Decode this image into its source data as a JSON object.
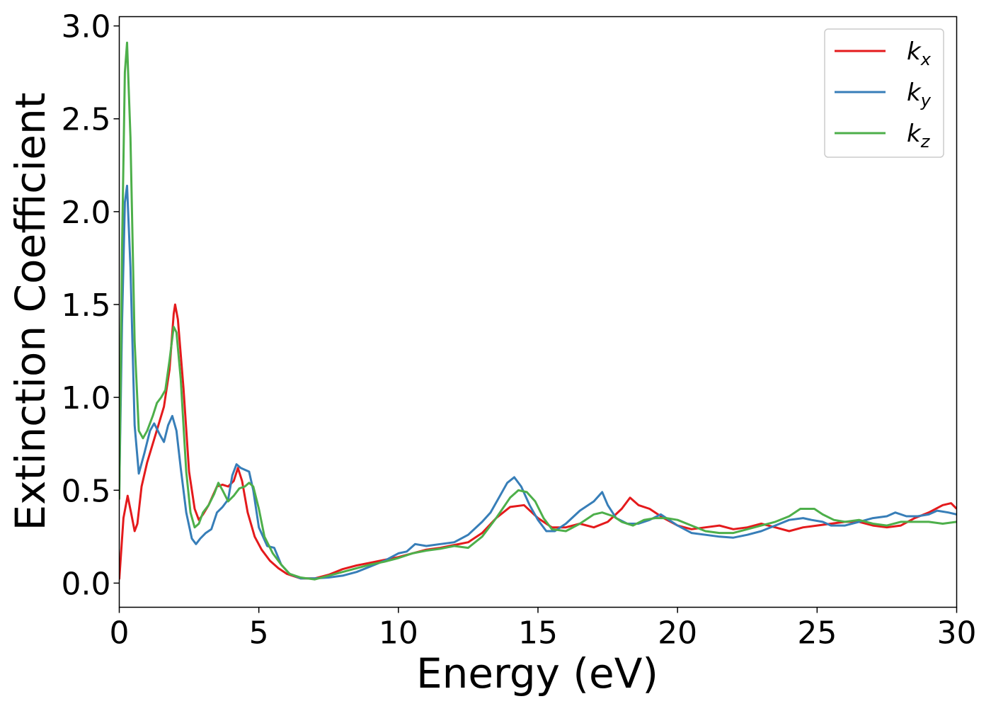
{
  "chart_data": {
    "type": "line",
    "title": "",
    "xlabel": "Energy (eV)",
    "ylabel": "Extinction Coefficient",
    "xlim": [
      0,
      30
    ],
    "ylim": [
      -0.13,
      3.05
    ],
    "xticks": [
      0,
      5,
      10,
      15,
      20,
      25,
      30
    ],
    "xtick_labels": [
      "0",
      "5",
      "10",
      "15",
      "20",
      "25",
      "30"
    ],
    "yticks": [
      0.0,
      0.5,
      1.0,
      1.5,
      2.0,
      2.5,
      3.0
    ],
    "ytick_labels": [
      "0.0",
      "0.5",
      "1.0",
      "1.5",
      "2.0",
      "2.5",
      "3.0"
    ],
    "grid": false,
    "legend_position": "top-right",
    "series": [
      {
        "name": "k",
        "subscript": "x",
        "color": "#e41a1c",
        "points": [
          [
            0,
            0.02
          ],
          [
            0.15,
            0.35
          ],
          [
            0.3,
            0.47
          ],
          [
            0.42,
            0.38
          ],
          [
            0.55,
            0.28
          ],
          [
            0.65,
            0.32
          ],
          [
            0.8,
            0.52
          ],
          [
            1.0,
            0.65
          ],
          [
            1.3,
            0.8
          ],
          [
            1.6,
            0.95
          ],
          [
            1.8,
            1.15
          ],
          [
            1.95,
            1.45
          ],
          [
            2.0,
            1.5
          ],
          [
            2.1,
            1.42
          ],
          [
            2.3,
            1.05
          ],
          [
            2.5,
            0.6
          ],
          [
            2.7,
            0.4
          ],
          [
            2.85,
            0.34
          ],
          [
            3.0,
            0.37
          ],
          [
            3.2,
            0.42
          ],
          [
            3.5,
            0.52
          ],
          [
            3.7,
            0.53
          ],
          [
            3.9,
            0.52
          ],
          [
            4.1,
            0.55
          ],
          [
            4.25,
            0.62
          ],
          [
            4.4,
            0.55
          ],
          [
            4.6,
            0.38
          ],
          [
            4.85,
            0.25
          ],
          [
            5.1,
            0.18
          ],
          [
            5.4,
            0.12
          ],
          [
            5.7,
            0.08
          ],
          [
            6.0,
            0.05
          ],
          [
            6.5,
            0.025
          ],
          [
            7.0,
            0.025
          ],
          [
            7.5,
            0.045
          ],
          [
            8.0,
            0.075
          ],
          [
            8.5,
            0.095
          ],
          [
            9.0,
            0.11
          ],
          [
            9.5,
            0.125
          ],
          [
            10.0,
            0.14
          ],
          [
            10.5,
            0.16
          ],
          [
            11.0,
            0.18
          ],
          [
            11.5,
            0.19
          ],
          [
            12.0,
            0.205
          ],
          [
            12.5,
            0.22
          ],
          [
            13.0,
            0.27
          ],
          [
            13.5,
            0.35
          ],
          [
            14.0,
            0.41
          ],
          [
            14.5,
            0.42
          ],
          [
            15.0,
            0.35
          ],
          [
            15.5,
            0.3
          ],
          [
            16.0,
            0.3
          ],
          [
            16.5,
            0.32
          ],
          [
            17.0,
            0.3
          ],
          [
            17.5,
            0.33
          ],
          [
            18.0,
            0.4
          ],
          [
            18.3,
            0.46
          ],
          [
            18.6,
            0.42
          ],
          [
            19.0,
            0.4
          ],
          [
            19.5,
            0.35
          ],
          [
            20.0,
            0.31
          ],
          [
            20.5,
            0.29
          ],
          [
            21.0,
            0.3
          ],
          [
            21.5,
            0.31
          ],
          [
            22.0,
            0.29
          ],
          [
            22.5,
            0.3
          ],
          [
            23.0,
            0.32
          ],
          [
            23.5,
            0.3
          ],
          [
            24.0,
            0.28
          ],
          [
            24.5,
            0.3
          ],
          [
            25.0,
            0.31
          ],
          [
            25.5,
            0.32
          ],
          [
            26.0,
            0.33
          ],
          [
            26.5,
            0.33
          ],
          [
            27.0,
            0.31
          ],
          [
            27.5,
            0.3
          ],
          [
            28.0,
            0.31
          ],
          [
            28.5,
            0.35
          ],
          [
            29.0,
            0.38
          ],
          [
            29.5,
            0.42
          ],
          [
            29.8,
            0.43
          ],
          [
            30.0,
            0.4
          ]
        ]
      },
      {
        "name": "k",
        "subscript": "y",
        "color": "#377eb8",
        "points": [
          [
            0,
            0.5
          ],
          [
            0.1,
            1.4
          ],
          [
            0.2,
            2.05
          ],
          [
            0.28,
            2.14
          ],
          [
            0.4,
            1.7
          ],
          [
            0.55,
            0.85
          ],
          [
            0.7,
            0.59
          ],
          [
            0.9,
            0.7
          ],
          [
            1.1,
            0.82
          ],
          [
            1.25,
            0.86
          ],
          [
            1.45,
            0.8
          ],
          [
            1.6,
            0.76
          ],
          [
            1.75,
            0.85
          ],
          [
            1.9,
            0.9
          ],
          [
            2.05,
            0.82
          ],
          [
            2.2,
            0.62
          ],
          [
            2.4,
            0.38
          ],
          [
            2.6,
            0.24
          ],
          [
            2.75,
            0.21
          ],
          [
            2.9,
            0.24
          ],
          [
            3.1,
            0.27
          ],
          [
            3.3,
            0.29
          ],
          [
            3.5,
            0.38
          ],
          [
            3.7,
            0.41
          ],
          [
            3.9,
            0.45
          ],
          [
            4.05,
            0.58
          ],
          [
            4.2,
            0.64
          ],
          [
            4.35,
            0.62
          ],
          [
            4.5,
            0.61
          ],
          [
            4.65,
            0.6
          ],
          [
            4.8,
            0.5
          ],
          [
            5.0,
            0.3
          ],
          [
            5.3,
            0.2
          ],
          [
            5.55,
            0.19
          ],
          [
            5.8,
            0.1
          ],
          [
            6.1,
            0.05
          ],
          [
            6.5,
            0.025
          ],
          [
            7.0,
            0.025
          ],
          [
            7.5,
            0.03
          ],
          [
            8.0,
            0.04
          ],
          [
            8.5,
            0.06
          ],
          [
            9.0,
            0.09
          ],
          [
            9.5,
            0.12
          ],
          [
            10.0,
            0.16
          ],
          [
            10.3,
            0.17
          ],
          [
            10.6,
            0.21
          ],
          [
            11.0,
            0.2
          ],
          [
            11.5,
            0.21
          ],
          [
            12.0,
            0.22
          ],
          [
            12.5,
            0.26
          ],
          [
            13.0,
            0.33
          ],
          [
            13.3,
            0.38
          ],
          [
            13.6,
            0.46
          ],
          [
            13.9,
            0.54
          ],
          [
            14.15,
            0.57
          ],
          [
            14.4,
            0.52
          ],
          [
            14.7,
            0.42
          ],
          [
            15.0,
            0.34
          ],
          [
            15.3,
            0.28
          ],
          [
            15.6,
            0.28
          ],
          [
            16.0,
            0.32
          ],
          [
            16.5,
            0.39
          ],
          [
            16.8,
            0.42
          ],
          [
            17.0,
            0.44
          ],
          [
            17.3,
            0.49
          ],
          [
            17.5,
            0.42
          ],
          [
            17.8,
            0.35
          ],
          [
            18.2,
            0.32
          ],
          [
            18.6,
            0.32
          ],
          [
            19.0,
            0.34
          ],
          [
            19.4,
            0.37
          ],
          [
            19.7,
            0.34
          ],
          [
            20.0,
            0.31
          ],
          [
            20.5,
            0.27
          ],
          [
            21.0,
            0.26
          ],
          [
            21.5,
            0.25
          ],
          [
            22.0,
            0.245
          ],
          [
            22.5,
            0.26
          ],
          [
            23.0,
            0.28
          ],
          [
            23.5,
            0.31
          ],
          [
            24.0,
            0.34
          ],
          [
            24.5,
            0.35
          ],
          [
            24.8,
            0.34
          ],
          [
            25.2,
            0.33
          ],
          [
            25.5,
            0.31
          ],
          [
            26.0,
            0.31
          ],
          [
            26.5,
            0.33
          ],
          [
            27.0,
            0.35
          ],
          [
            27.5,
            0.36
          ],
          [
            27.8,
            0.38
          ],
          [
            28.2,
            0.36
          ],
          [
            28.6,
            0.36
          ],
          [
            29.0,
            0.37
          ],
          [
            29.3,
            0.39
          ],
          [
            29.7,
            0.38
          ],
          [
            30.0,
            0.37
          ]
        ]
      },
      {
        "name": "k",
        "subscript": "z",
        "color": "#4daf4a",
        "points": [
          [
            0,
            0.45
          ],
          [
            0.1,
            1.8
          ],
          [
            0.2,
            2.75
          ],
          [
            0.28,
            2.91
          ],
          [
            0.4,
            2.4
          ],
          [
            0.55,
            1.3
          ],
          [
            0.7,
            0.82
          ],
          [
            0.85,
            0.78
          ],
          [
            1.0,
            0.82
          ],
          [
            1.2,
            0.9
          ],
          [
            1.35,
            0.97
          ],
          [
            1.5,
            1.0
          ],
          [
            1.65,
            1.04
          ],
          [
            1.8,
            1.2
          ],
          [
            1.95,
            1.38
          ],
          [
            2.05,
            1.35
          ],
          [
            2.2,
            1.1
          ],
          [
            2.4,
            0.6
          ],
          [
            2.55,
            0.38
          ],
          [
            2.7,
            0.3
          ],
          [
            2.85,
            0.32
          ],
          [
            3.0,
            0.38
          ],
          [
            3.2,
            0.42
          ],
          [
            3.4,
            0.48
          ],
          [
            3.55,
            0.54
          ],
          [
            3.7,
            0.5
          ],
          [
            3.9,
            0.44
          ],
          [
            4.1,
            0.47
          ],
          [
            4.3,
            0.51
          ],
          [
            4.5,
            0.52
          ],
          [
            4.65,
            0.54
          ],
          [
            4.8,
            0.52
          ],
          [
            5.0,
            0.4
          ],
          [
            5.2,
            0.25
          ],
          [
            5.5,
            0.16
          ],
          [
            5.8,
            0.1
          ],
          [
            6.1,
            0.05
          ],
          [
            6.5,
            0.03
          ],
          [
            7.0,
            0.02
          ],
          [
            7.5,
            0.04
          ],
          [
            8.0,
            0.06
          ],
          [
            8.5,
            0.08
          ],
          [
            9.0,
            0.1
          ],
          [
            9.5,
            0.115
          ],
          [
            10.0,
            0.135
          ],
          [
            10.5,
            0.16
          ],
          [
            11.0,
            0.175
          ],
          [
            11.5,
            0.185
          ],
          [
            12.0,
            0.2
          ],
          [
            12.5,
            0.19
          ],
          [
            13.0,
            0.25
          ],
          [
            13.5,
            0.35
          ],
          [
            14.0,
            0.46
          ],
          [
            14.3,
            0.5
          ],
          [
            14.6,
            0.49
          ],
          [
            14.9,
            0.44
          ],
          [
            15.2,
            0.35
          ],
          [
            15.5,
            0.29
          ],
          [
            16.0,
            0.28
          ],
          [
            16.5,
            0.32
          ],
          [
            17.0,
            0.37
          ],
          [
            17.3,
            0.38
          ],
          [
            17.7,
            0.36
          ],
          [
            18.0,
            0.33
          ],
          [
            18.4,
            0.31
          ],
          [
            18.8,
            0.34
          ],
          [
            19.2,
            0.35
          ],
          [
            19.6,
            0.35
          ],
          [
            20.0,
            0.34
          ],
          [
            20.5,
            0.31
          ],
          [
            21.0,
            0.28
          ],
          [
            21.5,
            0.27
          ],
          [
            22.0,
            0.27
          ],
          [
            22.5,
            0.29
          ],
          [
            23.0,
            0.31
          ],
          [
            23.5,
            0.33
          ],
          [
            24.0,
            0.36
          ],
          [
            24.4,
            0.4
          ],
          [
            24.9,
            0.4
          ],
          [
            25.2,
            0.37
          ],
          [
            25.6,
            0.34
          ],
          [
            26.0,
            0.33
          ],
          [
            26.5,
            0.34
          ],
          [
            27.0,
            0.32
          ],
          [
            27.5,
            0.31
          ],
          [
            28.0,
            0.33
          ],
          [
            28.5,
            0.33
          ],
          [
            29.0,
            0.33
          ],
          [
            29.5,
            0.32
          ],
          [
            30.0,
            0.33
          ]
        ]
      }
    ]
  }
}
